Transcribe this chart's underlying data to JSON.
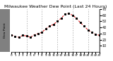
{
  "title": "Milwaukee Weather Dew Point (Last 24 Hours)",
  "x_values": [
    0,
    1,
    2,
    3,
    4,
    5,
    6,
    7,
    8,
    9,
    10,
    11,
    12,
    13,
    14,
    15,
    16,
    17,
    18,
    19,
    20,
    21,
    22,
    23
  ],
  "y_values": [
    28,
    25,
    24,
    27,
    26,
    24,
    28,
    30,
    32,
    38,
    42,
    45,
    50,
    55,
    62,
    63,
    60,
    55,
    48,
    42,
    36,
    32,
    29,
    27
  ],
  "ylim": [
    0,
    70
  ],
  "xlim": [
    0,
    23
  ],
  "yticks": [
    10,
    20,
    30,
    40,
    50,
    60,
    70
  ],
  "ytick_labels": [
    "10",
    "20",
    "30",
    "40",
    "50",
    "60",
    "70"
  ],
  "line_color": "#dd0000",
  "marker_color": "#000000",
  "bg_color": "#ffffff",
  "plot_bg_color": "#ffffff",
  "grid_color": "#888888",
  "title_color": "#000000",
  "title_fontsize": 4.5,
  "tick_fontsize": 3.5,
  "label_strip_color": "#808080",
  "label_text_color": "#000000",
  "grid_x": [
    4,
    8,
    12,
    16,
    20
  ],
  "xtick_step": 1
}
